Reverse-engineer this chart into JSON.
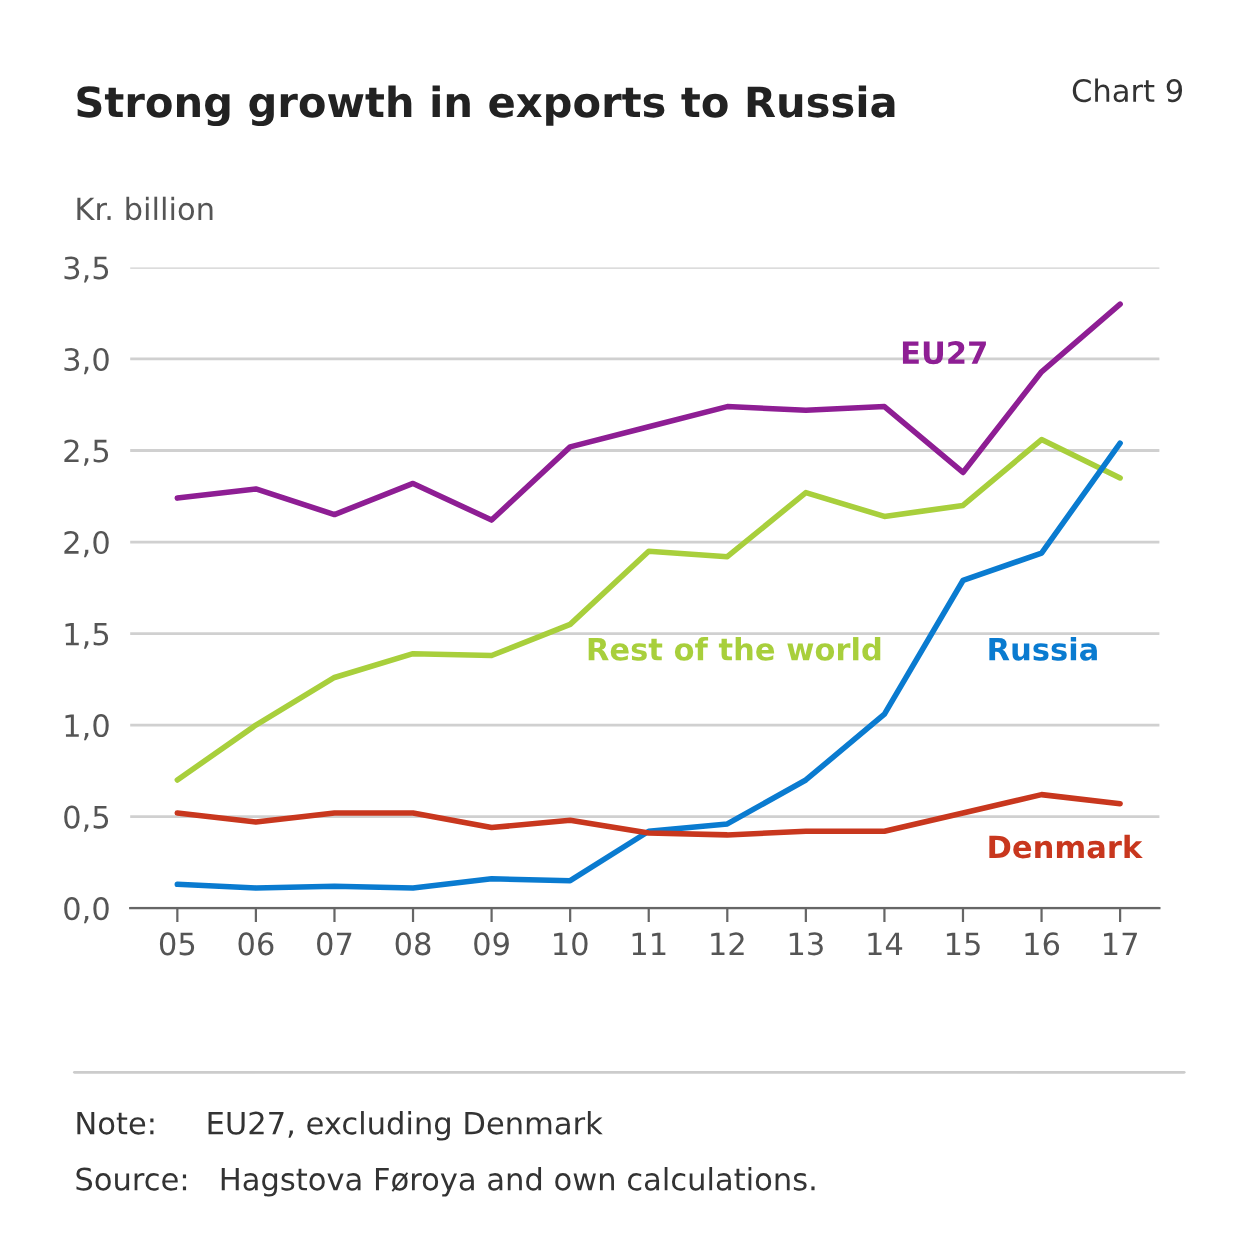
{
  "chart_data": {
    "type": "line",
    "title": "Strong growth in exports to Russia",
    "subtitle": "Chart 9",
    "ylabel": "Kr. billion",
    "categories": [
      "05",
      "06",
      "07",
      "08",
      "09",
      "10",
      "11",
      "12",
      "13",
      "14",
      "15",
      "16",
      "17"
    ],
    "series": [
      {
        "name": "EU27",
        "color": "#8e1e94",
        "values": [
          2.24,
          2.29,
          2.15,
          2.32,
          2.12,
          2.52,
          2.63,
          2.74,
          2.72,
          2.74,
          2.38,
          2.93,
          3.3
        ]
      },
      {
        "name": "Rest of the world",
        "color": "#a8cf3c",
        "values": [
          0.7,
          1.0,
          1.26,
          1.39,
          1.38,
          1.55,
          1.95,
          1.92,
          2.27,
          2.14,
          2.2,
          2.56,
          2.35
        ]
      },
      {
        "name": "Russia",
        "color": "#0a7bd0",
        "values": [
          0.13,
          0.11,
          0.12,
          0.11,
          0.16,
          0.15,
          0.42,
          0.46,
          0.7,
          1.06,
          1.79,
          1.94,
          2.54
        ]
      },
      {
        "name": "Denmark",
        "color": "#c8371e",
        "values": [
          0.52,
          0.47,
          0.52,
          0.52,
          0.44,
          0.48,
          0.41,
          0.4,
          0.42,
          0.42,
          0.52,
          0.62,
          0.57
        ]
      }
    ],
    "ylim": [
      0,
      3.5
    ],
    "yticks": [
      {
        "value": 0,
        "label": "0,0"
      },
      {
        "value": 0.5,
        "label": "0,5"
      },
      {
        "value": 1,
        "label": "1,0"
      },
      {
        "value": 1.5,
        "label": "1,5"
      },
      {
        "value": 2,
        "label": "2,0"
      },
      {
        "value": 2.5,
        "label": "2,5"
      },
      {
        "value": 3,
        "label": "3,0"
      },
      {
        "value": 3.5,
        "label": "3,5"
      }
    ],
    "grid": "y",
    "legend": false,
    "marker": "none",
    "line_style": "solid",
    "annotations": [
      "Note:     EU27, excluding Denmark",
      "Source:   Hagstova Føroya and own calculations."
    ]
  }
}
